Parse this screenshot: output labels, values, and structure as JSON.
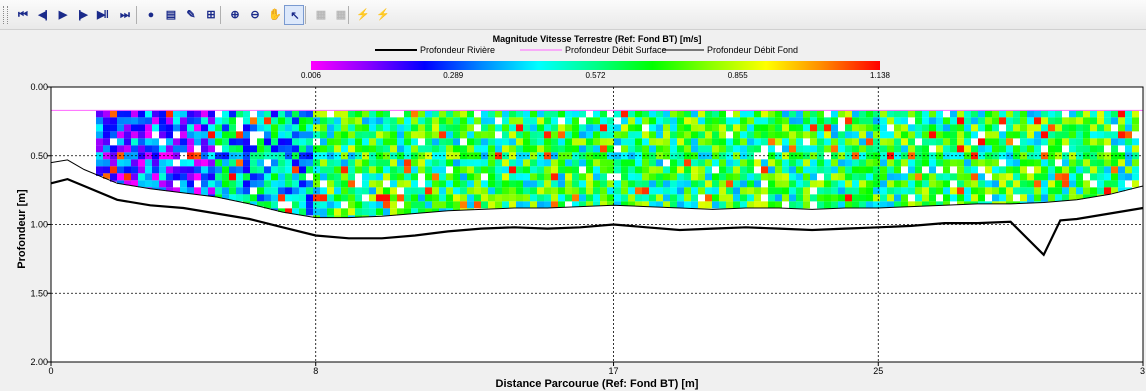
{
  "toolbar": {
    "buttons": [
      {
        "name": "first-frame-button",
        "glyph": "⏮",
        "enabled": true
      },
      {
        "name": "previous-frame-button",
        "glyph": "◀|",
        "enabled": true
      },
      {
        "name": "play-button",
        "glyph": "▶",
        "enabled": true
      },
      {
        "name": "next-frame-button",
        "glyph": "|▶",
        "enabled": true
      },
      {
        "name": "play-pause-button",
        "glyph": "▶‖",
        "enabled": true
      },
      {
        "name": "last-frame-button",
        "glyph": "⏭",
        "enabled": true
      },
      {
        "name": "data-probe-button",
        "glyph": "●",
        "enabled": true
      },
      {
        "name": "properties-button",
        "glyph": "▤",
        "enabled": true
      },
      {
        "name": "edit-chart-button",
        "glyph": "✎",
        "enabled": true
      },
      {
        "name": "grid-button",
        "glyph": "⊞",
        "enabled": true
      },
      {
        "name": "zoom-in-button",
        "glyph": "⊕",
        "enabled": true
      },
      {
        "name": "zoom-out-button",
        "glyph": "⊖",
        "enabled": true
      },
      {
        "name": "pan-button",
        "glyph": "✋",
        "enabled": true
      },
      {
        "name": "select-pointer-button",
        "glyph": "↖",
        "enabled": true,
        "active": true
      },
      {
        "name": "table-view-button",
        "glyph": "▦",
        "enabled": false
      },
      {
        "name": "table-alt-button",
        "glyph": "▦",
        "enabled": false
      },
      {
        "name": "lightning-yellow-button",
        "glyph": "⚡",
        "enabled": true
      },
      {
        "name": "lightning-red-button",
        "glyph": "⚡",
        "enabled": true
      }
    ],
    "colors": {
      "lightning_yellow": "#e8a800",
      "lightning_red": "#d42020"
    }
  },
  "chart_data": {
    "type": "heatmap",
    "title": "Magnitude Vitesse Terrestre (Ref: Fond BT) [m/s]",
    "xlabel": "Distance Parcourue (Ref: Fond BT) [m]",
    "ylabel": "Profondeur [m]",
    "x_ticks": [
      "0",
      "8",
      "17",
      "25",
      "3"
    ],
    "y_ticks": [
      "0.00",
      "0.50",
      "1.00",
      "1.50",
      "2.00"
    ],
    "xlim": [
      0,
      33
    ],
    "ylim": [
      2.0,
      0.0
    ],
    "colorbar": {
      "ticks": [
        "0.006",
        "0.289",
        "0.572",
        "0.855",
        "1.138"
      ],
      "range": [
        0.006,
        1.138
      ],
      "colors": [
        "#ff00ff",
        "#8800ff",
        "#0000ff",
        "#0088ff",
        "#00ffff",
        "#00ff88",
        "#00ff00",
        "#88ff00",
        "#ffff00",
        "#ff8800",
        "#ff0000"
      ]
    },
    "legend": [
      {
        "label": "Profondeur Rivière",
        "color": "#000000",
        "style": "thick"
      },
      {
        "label": "Profondeur Débit Surface",
        "color": "#ff66ff",
        "style": "thin"
      },
      {
        "label": "Profondeur Débit Fond",
        "color": "#000000",
        "style": "thin"
      }
    ],
    "bin_top_depth": 0.17,
    "series": [
      {
        "name": "Profondeur Rivière",
        "x": [
          0,
          0.5,
          1,
          2,
          3,
          4,
          5,
          6,
          7,
          8,
          9,
          10,
          11,
          12,
          13,
          14,
          15,
          16,
          17,
          18,
          19,
          20,
          21,
          22,
          23,
          24,
          25,
          26,
          27,
          28,
          29,
          30,
          30.5,
          31,
          32,
          33
        ],
        "y": [
          0.7,
          0.67,
          0.72,
          0.82,
          0.86,
          0.88,
          0.92,
          0.96,
          1.02,
          1.08,
          1.1,
          1.1,
          1.08,
          1.05,
          1.03,
          1.02,
          1.03,
          1.02,
          1.0,
          1.02,
          1.04,
          1.03,
          1.02,
          1.03,
          1.04,
          1.03,
          1.02,
          1.01,
          0.99,
          0.99,
          0.98,
          1.22,
          0.97,
          0.96,
          0.92,
          0.88
        ]
      },
      {
        "name": "Profondeur Débit Fond",
        "x": [
          0,
          0.5,
          1,
          2,
          3,
          4,
          5,
          6,
          7,
          8,
          9,
          10,
          11,
          12,
          13,
          14,
          15,
          16,
          17,
          18,
          19,
          20,
          21,
          22,
          23,
          24,
          25,
          26,
          27,
          28,
          29,
          30,
          31,
          32,
          33
        ],
        "y": [
          0.55,
          0.53,
          0.6,
          0.7,
          0.74,
          0.77,
          0.8,
          0.85,
          0.91,
          0.95,
          0.95,
          0.94,
          0.92,
          0.9,
          0.89,
          0.88,
          0.88,
          0.87,
          0.86,
          0.87,
          0.88,
          0.89,
          0.88,
          0.88,
          0.89,
          0.88,
          0.88,
          0.87,
          0.86,
          0.85,
          0.85,
          0.84,
          0.82,
          0.78,
          0.72
        ]
      },
      {
        "name": "Profondeur Débit Surface",
        "x": [
          0,
          33
        ],
        "y": [
          0.17,
          0.17
        ]
      }
    ]
  }
}
